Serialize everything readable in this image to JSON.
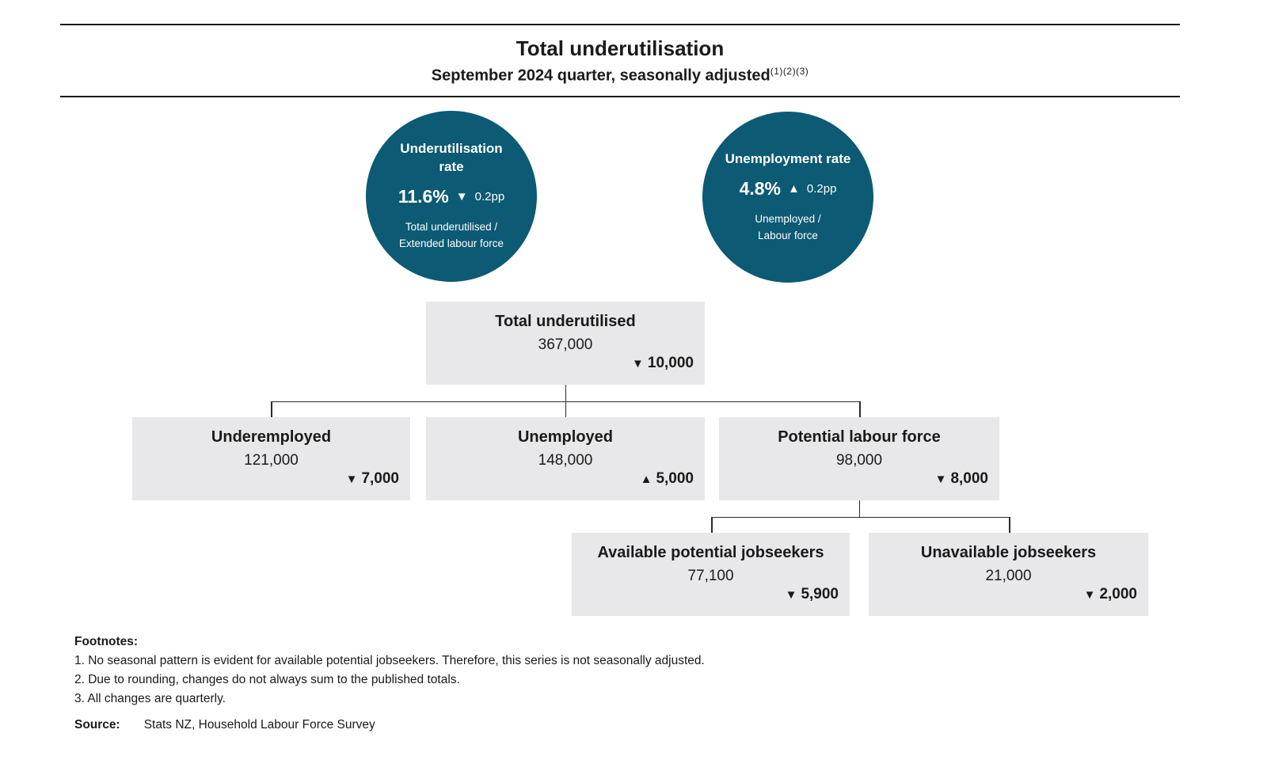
{
  "header": {
    "title": "Total underutilisation",
    "subtitle": "September 2024 quarter, seasonally adjusted",
    "superscript": "(1)(2)(3)"
  },
  "colors": {
    "circle_teal": "#0c5a73",
    "box_grey": "#e8e8ea",
    "line_dark": "#2b2b2b",
    "text": "#1a1a1a"
  },
  "circles": {
    "underutilisation": {
      "title": "Underutilisation rate",
      "rate": "11.6%",
      "arrow": "▼",
      "change": "0.2pp",
      "formula_line1": "Total underutilised /",
      "formula_line2": "Extended labour force"
    },
    "unemployment": {
      "title": "Unemployment rate",
      "rate": "4.8%",
      "arrow": "▲",
      "change": "0.2pp",
      "formula_line1": "Unemployed /",
      "formula_line2": "Labour force"
    }
  },
  "nodes": {
    "total": {
      "label": "Total underutilised",
      "value": "367,000",
      "arrow": "▼",
      "change": "10,000"
    },
    "underemployed": {
      "label": "Underemployed",
      "value": "121,000",
      "arrow": "▼",
      "change": "7,000"
    },
    "unemployed": {
      "label": "Unemployed",
      "value": "148,000",
      "arrow": "▲",
      "change": "5,000"
    },
    "potential_labour_force": {
      "label": "Potential labour force",
      "value": "98,000",
      "arrow": "▼",
      "change": "8,000"
    },
    "available_potential_jobseekers": {
      "label": "Available potential jobseekers",
      "value": "77,100",
      "arrow": "▼",
      "change": "5,900"
    },
    "unavailable_jobseekers": {
      "label": "Unavailable jobseekers",
      "value": "21,000",
      "arrow": "▼",
      "change": "2,000"
    }
  },
  "footnotes": {
    "heading": "Footnotes:",
    "items": [
      "1. No seasonal pattern is evident for available potential jobseekers. Therefore, this series is not seasonally adjusted.",
      "2. Due to rounding, changes do not always sum to the published totals.",
      "3. All changes are quarterly."
    ],
    "source_label": "Source:",
    "source": "Stats NZ, Household Labour Force Survey"
  }
}
